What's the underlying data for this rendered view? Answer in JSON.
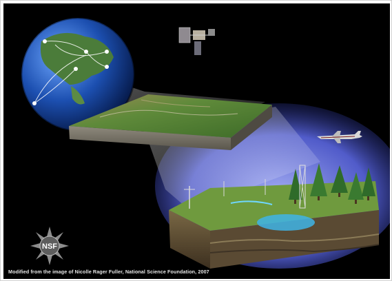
{
  "illustration": {
    "logo_text": "NSF",
    "credit_line": "Modified from the image of Nicolle Rager Fuller, National Science Foundation, 2007"
  },
  "colors": {
    "background": "#000000",
    "dome_blue": "#3b4fd6",
    "ocean_blue": "#1c4fb0",
    "land_green": "#4f8a2f",
    "soil_brown": "#6a5536",
    "water_cyan": "#3fb4e6"
  },
  "icons": [
    "globe-icon",
    "satellite-icon",
    "airplane-icon",
    "nsf-seal-icon",
    "tree-icon",
    "tower-icon"
  ]
}
